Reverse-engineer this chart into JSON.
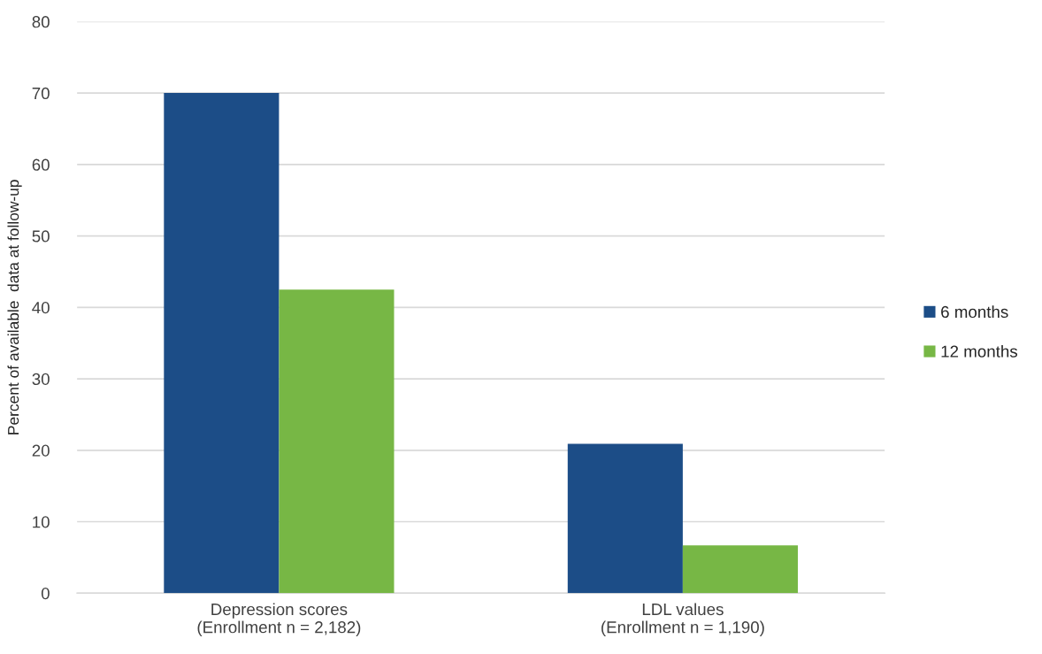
{
  "chart_data": {
    "type": "bar",
    "ylabel": "Percent of available  data at follow-up",
    "categories": [
      "Depression scores\n(Enrollment n = 2,182)",
      "LDL values\n(Enrollment n = 1,190)"
    ],
    "series": [
      {
        "name": "6 months",
        "color": "#1c4d87",
        "values": [
          70.0,
          20.9
        ]
      },
      {
        "name": "12 months",
        "color": "#77b745",
        "values": [
          42.5,
          6.7
        ]
      }
    ],
    "ylim": [
      0,
      80
    ],
    "yticks": [
      0,
      10,
      20,
      30,
      40,
      50,
      60,
      70,
      80
    ],
    "grid": "y",
    "legend": "right"
  }
}
